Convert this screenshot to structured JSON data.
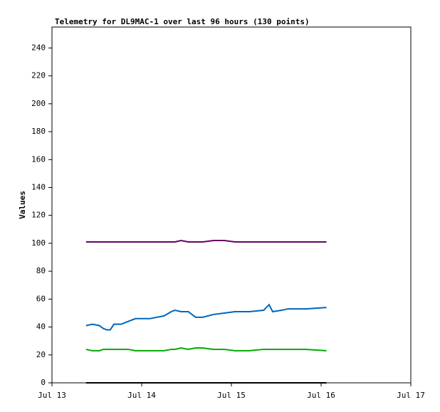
{
  "chart_data": {
    "type": "line",
    "title": "Telemetry for DL9MAC-1 over last 96 hours (130 points)",
    "y_label": "Values",
    "x": [
      0.38,
      0.45,
      0.53,
      0.57,
      0.61,
      0.65,
      0.69,
      0.77,
      0.85,
      0.93,
      1.09,
      1.25,
      1.33,
      1.37,
      1.44,
      1.52,
      1.6,
      1.68,
      1.8,
      1.92,
      2.04,
      2.2,
      2.36,
      2.42,
      2.46,
      2.56,
      2.63,
      2.83,
      3.06
    ],
    "series": [
      {
        "color": "#660066",
        "values": [
          101,
          101,
          101,
          101,
          101,
          101,
          101,
          101,
          101,
          101,
          101,
          101,
          101,
          101,
          102,
          101,
          101,
          101,
          102,
          102,
          101,
          101,
          101,
          101,
          101,
          101,
          101,
          101,
          101
        ]
      },
      {
        "color": "#0066bb",
        "values": [
          41,
          42,
          41,
          39,
          38,
          38,
          42,
          42,
          44,
          46,
          46,
          48,
          51,
          52,
          51,
          51,
          47,
          47,
          49,
          50,
          51,
          51,
          52,
          56,
          51,
          52,
          53,
          53,
          54
        ]
      },
      {
        "color": "#00aa00",
        "values": [
          24,
          23,
          23,
          24,
          24,
          24,
          24,
          24,
          24,
          23,
          23,
          23,
          24,
          24,
          25,
          24,
          25,
          25,
          24,
          24,
          23,
          23,
          24,
          24,
          24,
          24,
          24,
          24,
          23
        ]
      },
      {
        "color": "#000000",
        "values": [
          0,
          0,
          0,
          0,
          0,
          0,
          0,
          0,
          0,
          0,
          0,
          0,
          0,
          0,
          0,
          0,
          0,
          0,
          0,
          0,
          0,
          0,
          0,
          0,
          0,
          0,
          0,
          0,
          0
        ]
      }
    ],
    "xlim": [
      0,
      4
    ],
    "xticks": [
      {
        "value": 0,
        "label": "Jul 13"
      },
      {
        "value": 1,
        "label": "Jul 14"
      },
      {
        "value": 2,
        "label": "Jul 15"
      },
      {
        "value": 3,
        "label": "Jul 16"
      },
      {
        "value": 4,
        "label": "Jul 17"
      }
    ],
    "ylim": [
      0,
      255
    ],
    "yticks": [
      0,
      20,
      40,
      60,
      80,
      100,
      120,
      140,
      160,
      180,
      200,
      220,
      240
    ],
    "grid": false
  }
}
